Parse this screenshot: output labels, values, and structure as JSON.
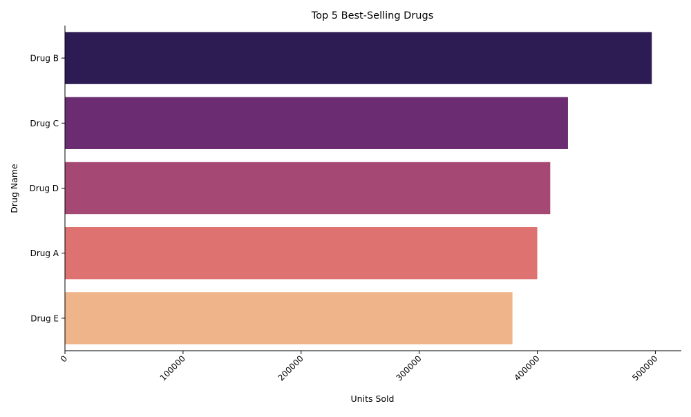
{
  "chart_data": {
    "type": "bar",
    "orientation": "horizontal",
    "title": "Top 5 Best-Selling Drugs",
    "xlabel": "Units Sold",
    "ylabel": "Drug Name",
    "categories": [
      "Drug B",
      "Drug C",
      "Drug D",
      "Drug A",
      "Drug E"
    ],
    "values": [
      497000,
      426000,
      411000,
      400000,
      379000
    ],
    "colors": [
      "#2d1b53",
      "#6b2c72",
      "#a64874",
      "#de7270",
      "#efb489"
    ],
    "xlim": [
      0,
      522000
    ],
    "xticks": [
      0,
      100000,
      200000,
      300000,
      400000,
      500000
    ],
    "xtick_labels": [
      "0",
      "100000",
      "200000",
      "300000",
      "400000",
      "500000"
    ],
    "xtick_rotation": 45,
    "grid": false,
    "legend": "none"
  }
}
